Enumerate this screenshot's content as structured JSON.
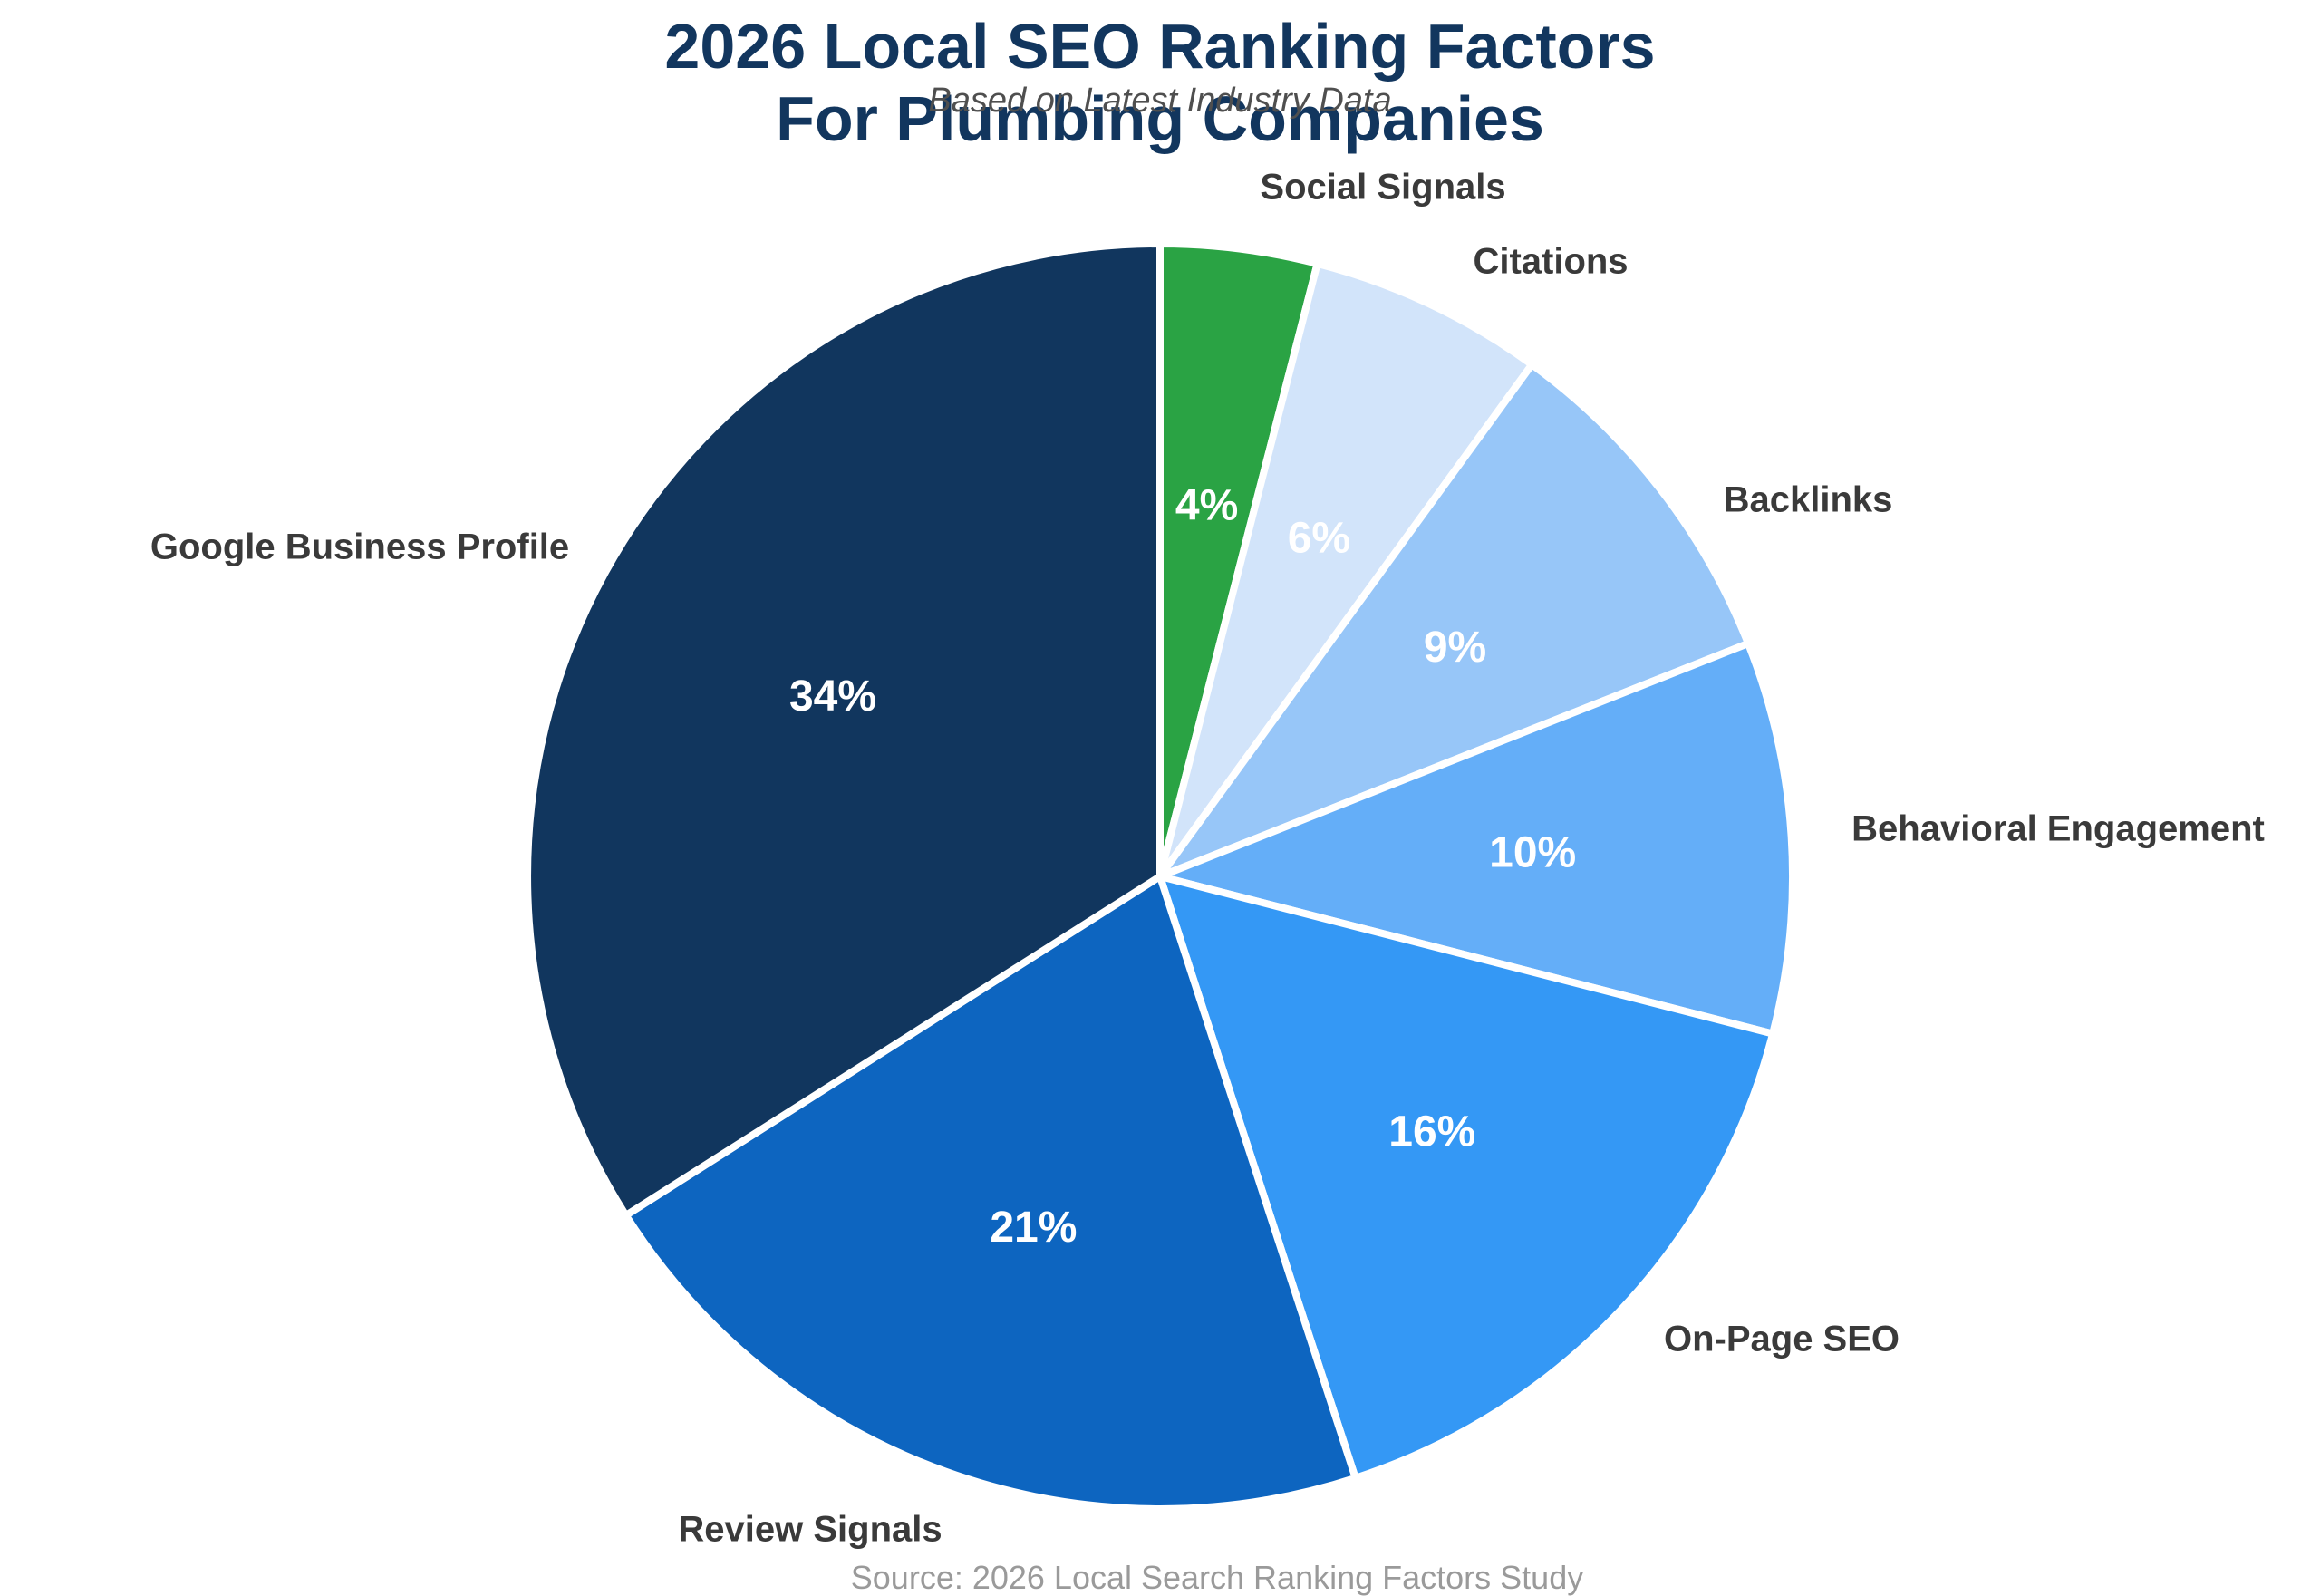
{
  "title": {
    "line1": "2026 Local SEO Ranking Factors",
    "line2": "For Plumbing Companies"
  },
  "subtitle": "Based on Latest Industry Data",
  "source": "Source: 2026 Local Search Ranking Factors Study",
  "colors": {
    "title_navy": "#12365E",
    "subtitle_gray": "#4f4f4f",
    "label_gray": "#3a3a3a",
    "source_gray": "#9a9a9a",
    "percent_label": "#ffffff",
    "slice_separator": "#ffffff"
  },
  "chart_data": {
    "type": "pie",
    "title": "2026 Local SEO Ranking Factors For Plumbing Companies",
    "subtitle": "Based on Latest Industry Data",
    "source": "Source: 2026 Local Search Ranking Factors Study",
    "start_angle": "12 o'clock",
    "direction": "clockwise",
    "legend_position": "outside-labels",
    "grid": false,
    "slices": [
      {
        "label": "Social Signals",
        "value": 4,
        "pct_text": "4%",
        "color": "#2AA344"
      },
      {
        "label": "Citations",
        "value": 6,
        "pct_text": "6%",
        "color": "#D2E4FA"
      },
      {
        "label": "Backlinks",
        "value": 9,
        "pct_text": "9%",
        "color": "#97C6F8"
      },
      {
        "label": "Behavioral Engagement",
        "value": 10,
        "pct_text": "10%",
        "color": "#64AEF8"
      },
      {
        "label": "On-Page SEO",
        "value": 16,
        "pct_text": "16%",
        "color": "#3498F5"
      },
      {
        "label": "Review Signals",
        "value": 21,
        "pct_text": "21%",
        "color": "#0D65C0"
      },
      {
        "label": "Google Business Profile",
        "value": 34,
        "pct_text": "34%",
        "color": "#11365E"
      }
    ]
  }
}
